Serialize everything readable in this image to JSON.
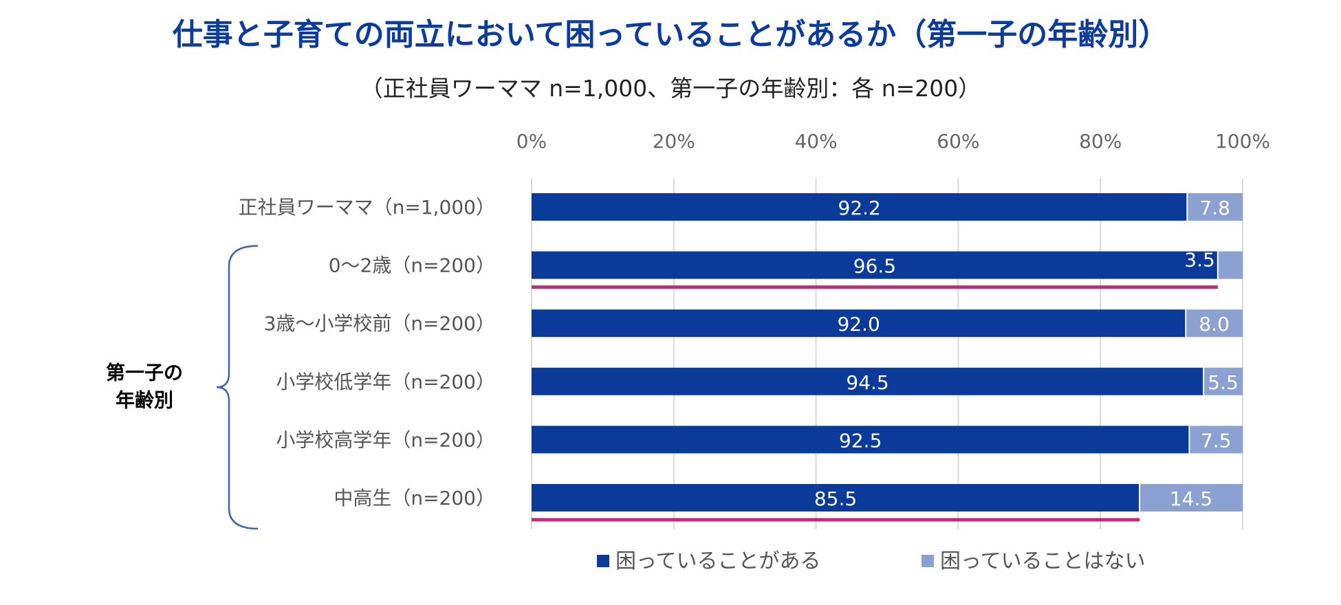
{
  "title": "仕事と子育ての両立において困っていることがあるか（第一子の年齢別）",
  "subtitle": "（正社員ワーママ n=1,000、第一子の年齢別：各 n=200）",
  "group_label": [
    "第一子の",
    "年齢別"
  ],
  "colors": {
    "yes": "#0a3a9a",
    "no": "#8aa1d1",
    "grid": "#d9d9d9",
    "highlight": "#c6287a",
    "brace": "#3b63b2",
    "title": "#0b3b9c"
  },
  "chart_data": {
    "type": "bar",
    "orientation": "horizontal",
    "stacked": true,
    "title": "仕事と子育ての両立において困っていることがあるか（第一子の年齢別）",
    "subtitle": "（正社員ワーママ n=1,000、第一子の年齢別：各 n=200）",
    "xlim": [
      0,
      100
    ],
    "x_ticks": [
      "0%",
      "20%",
      "40%",
      "60%",
      "80%",
      "100%"
    ],
    "categories": [
      "正社員ワーママ（n=1,000）",
      "0〜2歳（n=200）",
      "3歳〜小学校前（n=200）",
      "小学校低学年（n=200）",
      "小学校高学年（n=200）",
      "中高生（n=200）"
    ],
    "series": [
      {
        "name": "困っていることがある",
        "values": [
          92.2,
          96.5,
          92.0,
          94.5,
          92.5,
          85.5
        ]
      },
      {
        "name": "困っていることはない",
        "values": [
          7.8,
          3.5,
          8.0,
          5.5,
          7.5,
          14.5
        ]
      }
    ],
    "value_labels": [
      [
        "92.2",
        "96.5",
        "92.0",
        "94.5",
        "92.5",
        "85.5"
      ],
      [
        "7.8",
        "3.5",
        "8.0",
        "5.5",
        "7.5",
        "14.5"
      ]
    ],
    "highlighted_categories": [
      "0〜2歳（n=200）",
      "中高生（n=200）"
    ],
    "legend_position": "bottom"
  }
}
